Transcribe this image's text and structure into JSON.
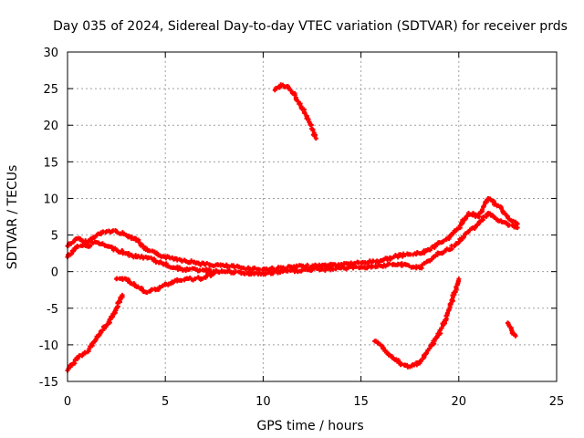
{
  "chart_data": {
    "type": "scatter",
    "title": "Day 035 of 2024, Sidereal Day-to-day VTEC variation (SDTVAR) for receiver prds",
    "xlabel": "GPS time / hours",
    "ylabel": "SDTVAR / TECUs",
    "xlim": [
      0,
      25
    ],
    "ylim": [
      -15,
      30
    ],
    "xticks": [
      "0",
      "5",
      "10",
      "15",
      "20",
      "25"
    ],
    "yticks": [
      "-15",
      "-10",
      "-5",
      "0",
      "5",
      "10",
      "15",
      "20",
      "25",
      "30"
    ],
    "grid": true,
    "legend": "none",
    "marker_color": "#ff0000",
    "series": [
      {
        "name": "main-band-upper",
        "x": [
          0.0,
          0.5,
          1.0,
          1.5,
          2.0,
          2.5,
          3.0,
          3.5,
          4.0,
          4.5,
          5.0,
          5.5,
          6.0,
          7.0,
          8.0,
          9.0,
          10.0,
          11.0,
          12.0,
          13.0,
          14.0,
          15.0,
          16.0,
          17.0,
          18.0,
          18.5,
          19.0,
          19.5,
          20.0,
          20.5,
          21.0,
          21.5,
          22.0,
          22.5,
          23.0
        ],
        "values": [
          3.5,
          4.5,
          4.0,
          5.0,
          5.5,
          5.5,
          5.0,
          4.5,
          3.0,
          2.5,
          2.0,
          1.8,
          1.5,
          1.0,
          0.8,
          0.5,
          0.3,
          0.5,
          0.7,
          0.8,
          1.0,
          1.2,
          1.5,
          2.2,
          2.5,
          3.0,
          4.0,
          4.5,
          6.0,
          8.0,
          7.5,
          10.0,
          9.0,
          7.5,
          6.5
        ]
      },
      {
        "name": "main-band-lower",
        "x": [
          0.0,
          0.5,
          1.0,
          1.5,
          2.0,
          2.5,
          3.0,
          3.5,
          4.0,
          4.5,
          5.0,
          5.5,
          6.0,
          7.0,
          8.0,
          9.0,
          10.0,
          11.0,
          12.0,
          13.0,
          14.0,
          15.0,
          16.0,
          17.0,
          18.0,
          18.5,
          19.0,
          19.5,
          20.0,
          20.5,
          21.0,
          21.5,
          22.0,
          22.5,
          23.0
        ],
        "values": [
          2.0,
          3.5,
          3.5,
          4.0,
          3.5,
          3.0,
          2.5,
          2.0,
          2.0,
          1.5,
          1.0,
          0.5,
          0.3,
          0.2,
          0.0,
          -0.2,
          -0.3,
          0.0,
          0.2,
          0.3,
          0.5,
          0.6,
          0.8,
          1.0,
          0.5,
          1.5,
          2.5,
          3.0,
          4.0,
          5.5,
          6.5,
          8.0,
          7.0,
          6.5,
          6.0
        ]
      },
      {
        "name": "satellite-rise-a",
        "x": [
          0.0,
          0.3,
          0.6,
          1.0,
          1.4,
          1.8,
          2.2,
          2.5,
          2.8
        ],
        "values": [
          -13.5,
          -12.5,
          -11.5,
          -11.0,
          -9.5,
          -8.0,
          -6.5,
          -5.0,
          -3.2
        ]
      },
      {
        "name": "satellite-arc-b",
        "x": [
          2.5,
          3.0,
          3.5,
          4.0,
          4.5,
          5.0,
          5.5,
          6.0,
          6.5,
          7.0,
          7.5
        ],
        "values": [
          -1.0,
          -1.0,
          -2.0,
          -2.8,
          -2.5,
          -1.8,
          -1.2,
          -1.0,
          -1.0,
          -0.8,
          -0.2
        ]
      },
      {
        "name": "satellite-arc-c",
        "x": [
          10.6,
          10.8,
          11.0,
          11.2,
          11.5,
          11.8,
          12.1,
          12.4,
          12.7
        ],
        "values": [
          24.8,
          25.2,
          25.5,
          25.3,
          24.5,
          23.2,
          21.8,
          20.2,
          18.2
        ]
      },
      {
        "name": "satellite-arc-d",
        "x": [
          15.7,
          16.0,
          16.5,
          17.0,
          17.5,
          18.0,
          18.5,
          19.0,
          19.4,
          19.7,
          20.0
        ],
        "values": [
          -9.5,
          -10.0,
          -11.5,
          -12.5,
          -13.0,
          -12.5,
          -10.5,
          -8.5,
          -6.0,
          -3.5,
          -1.0
        ]
      },
      {
        "name": "satellite-arc-e",
        "x": [
          22.5,
          22.6,
          22.7,
          22.8,
          22.9
        ],
        "values": [
          -7.0,
          -7.5,
          -8.0,
          -8.5,
          -8.8
        ]
      }
    ]
  }
}
